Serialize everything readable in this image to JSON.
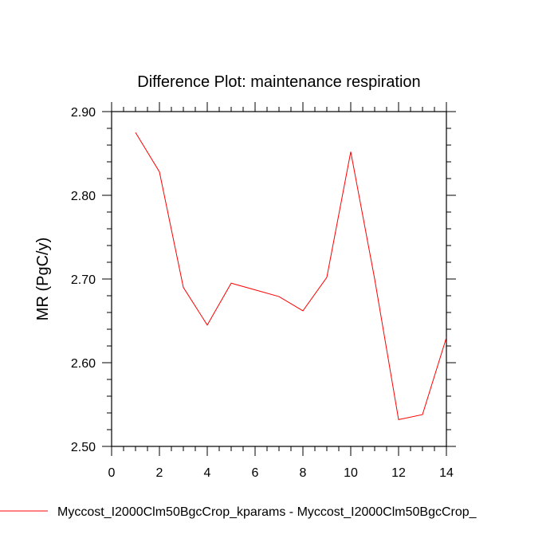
{
  "chart_data": {
    "type": "line",
    "title": "Difference Plot: maintenance respiration",
    "xlabel": "",
    "ylabel": "MR  (PgC/y)",
    "xlim": [
      0,
      14
    ],
    "ylim": [
      2.5,
      2.9
    ],
    "xticks": [
      0,
      2,
      4,
      6,
      8,
      10,
      12,
      14
    ],
    "xtick_labels": [
      "0",
      "2",
      "4",
      "6",
      "8",
      "10",
      "12",
      "14"
    ],
    "yticks": [
      2.5,
      2.6,
      2.7,
      2.8,
      2.9
    ],
    "ytick_labels": [
      "2.50",
      "2.60",
      "2.70",
      "2.80",
      "2.90"
    ],
    "grid": false,
    "legend_position": "bottom",
    "series": [
      {
        "name": "Myccost_I2000Clm50BgcCrop_kparams - Myccost_I2000Clm50BgcCrop_",
        "color": "#ff0000",
        "x": [
          1,
          2,
          3,
          4,
          5,
          6,
          7,
          8,
          9,
          10,
          11,
          12,
          13,
          14
        ],
        "y": [
          2.875,
          2.828,
          2.69,
          2.645,
          2.695,
          2.687,
          2.679,
          2.662,
          2.702,
          2.852,
          2.7,
          2.532,
          2.538,
          2.63
        ]
      }
    ]
  }
}
